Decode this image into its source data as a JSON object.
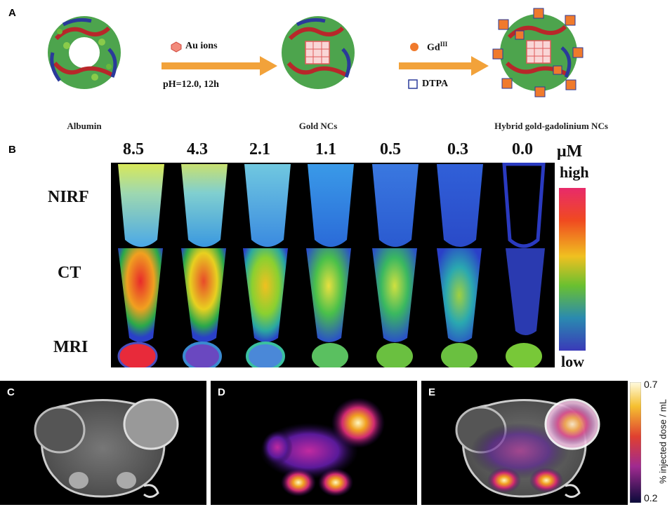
{
  "panels": {
    "a": {
      "letter": "A",
      "captions": [
        "Albumin",
        "Gold NCs",
        "Hybrid gold-gadolinium NCs"
      ],
      "arrow1": {
        "legend": "Au ions",
        "condition": "pH=12.0, 12h"
      },
      "arrow2": {
        "legend_gd": "Gd",
        "legend_gd_sup": "III",
        "legend_dtpa": "DTPA"
      },
      "colors": {
        "arrow": "#f2a23a",
        "marker": "#f07a2c",
        "protein_green": "#3a9a3a",
        "protein_red": "#b8272a",
        "protein_blue": "#2a3a9a"
      }
    },
    "b": {
      "letter": "B",
      "concentrations": [
        "8.5",
        "4.3",
        "2.1",
        "1.1",
        "0.5",
        "0.3",
        "0.0"
      ],
      "unit": "μM",
      "rows": [
        "NIRF",
        "CT",
        "MRI"
      ],
      "colorbar": {
        "high": "high",
        "low": "low"
      }
    },
    "c": {
      "letter": "C"
    },
    "d": {
      "letter": "D"
    },
    "e": {
      "letter": "E",
      "colorbar": {
        "max": "0.7",
        "min": "0.2",
        "label": "% injected dose / mL"
      }
    }
  }
}
